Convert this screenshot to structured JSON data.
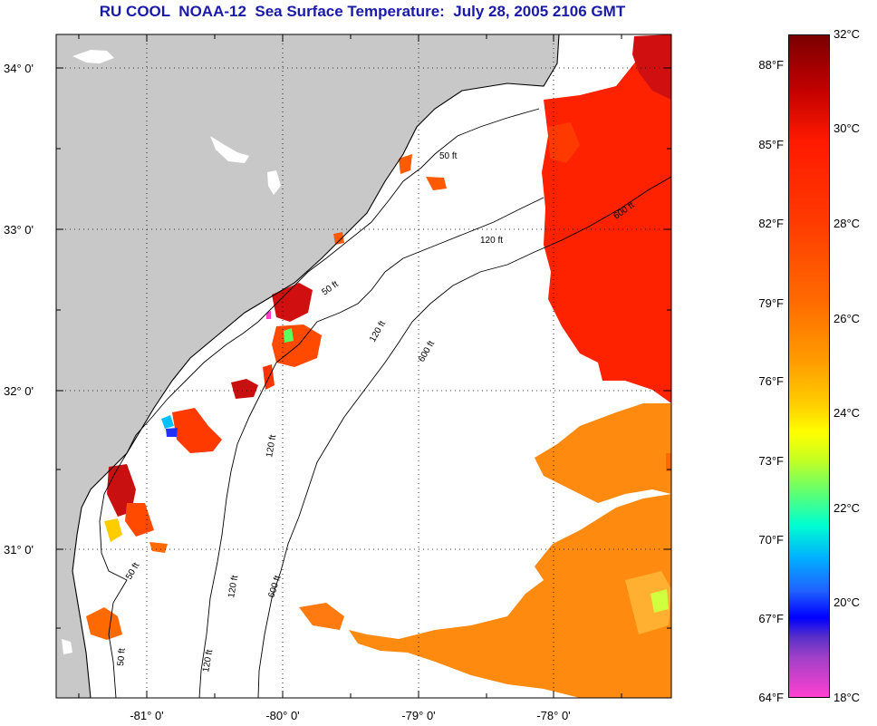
{
  "title": "RU COOL  NOAA-12  Sea Surface Temperature:  July 28, 2005 2106 GMT",
  "axes": {
    "lat_labels": [
      "34° 0'",
      "33° 0'",
      "32° 0'",
      "31° 0'"
    ],
    "lon_labels": [
      "-81° 0'",
      "-80° 0'",
      "-79° 0'",
      "-78° 0'"
    ]
  },
  "contour_labels": [
    "50 ft",
    "120 ft",
    "600 ft"
  ],
  "colorbar": {
    "fahrenheit": [
      "88°F",
      "85°F",
      "82°F",
      "79°F",
      "76°F",
      "73°F",
      "70°F",
      "67°F",
      "64°F"
    ],
    "celsius": [
      "32°C",
      "30°C",
      "28°C",
      "26°C",
      "24°C",
      "22°C",
      "20°C",
      "18°C"
    ]
  },
  "colors": {
    "land": "#c8c8c8",
    "ocean": "#ffffff",
    "title": "#1a1aa8"
  }
}
